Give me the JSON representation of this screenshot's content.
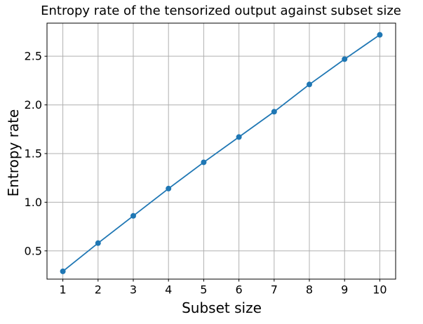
{
  "chart_data": {
    "type": "line",
    "title": "Entropy rate of the tensorized output against subset size",
    "xlabel": "Subset size",
    "ylabel": "Entropy rate",
    "series": [
      {
        "name": "entropy-rate",
        "x": [
          1,
          2,
          3,
          4,
          5,
          6,
          7,
          8,
          9,
          10
        ],
        "y": [
          0.29,
          0.58,
          0.86,
          1.14,
          1.41,
          1.67,
          1.93,
          2.21,
          2.47,
          2.72
        ]
      }
    ],
    "xlim": [
      0.55,
      10.45
    ],
    "ylim": [
      0.21,
      2.84
    ],
    "x_tick_values": [
      1,
      2,
      3,
      4,
      5,
      6,
      7,
      8,
      9,
      10
    ],
    "x_tick_labels": [
      "1",
      "2",
      "3",
      "4",
      "5",
      "6",
      "7",
      "8",
      "9",
      "10"
    ],
    "y_tick_values": [
      0.5,
      1.0,
      1.5,
      2.0,
      2.5
    ],
    "y_tick_labels": [
      "0.5",
      "1.0",
      "1.5",
      "2.0",
      "2.5"
    ],
    "grid": true,
    "legend": "none",
    "marker": "circle",
    "colors": {
      "line": "#1f77b4",
      "marker": "#1f77b4",
      "grid": "#b0b0b0",
      "spine": "#000000",
      "text": "#000000",
      "background": "#ffffff"
    }
  }
}
